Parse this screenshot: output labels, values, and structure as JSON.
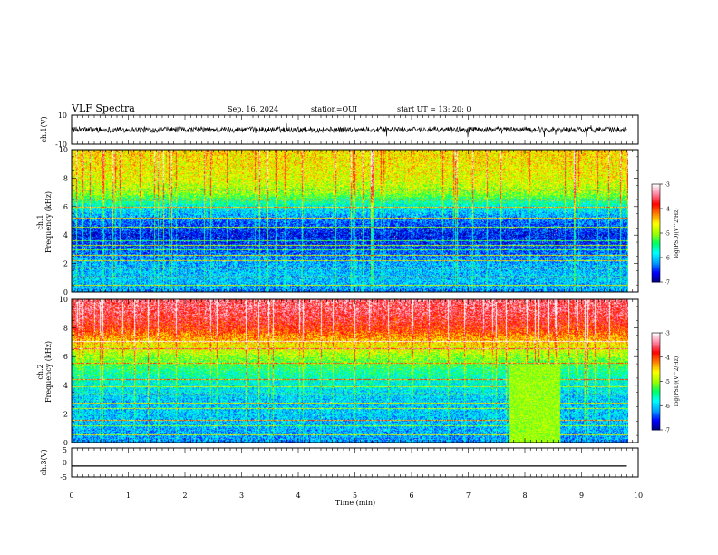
{
  "header": {
    "title": "VLF Spectra",
    "date": "Sep. 16, 2024",
    "station": "station=OUI",
    "start": "start  UT  =   13: 20: 0"
  },
  "colorbar": {
    "label": "log(PSD)(V^2/Hz)",
    "ticks": [
      "-3",
      "-4",
      "-5",
      "-6",
      "-7"
    ],
    "range": [
      -7,
      -3
    ],
    "colors": [
      "#000080",
      "#0000ff",
      "#00a0ff",
      "#00ffff",
      "#00ff60",
      "#a0ff00",
      "#ffff00",
      "#ff8000",
      "#ff0000",
      "#ff80a0",
      "#ffffff"
    ]
  },
  "chart_data": [
    {
      "type": "line",
      "panel": "ch1-waveform",
      "ylabel": "ch.1(V)",
      "ylim": [
        -10,
        10
      ],
      "yticks": [
        "10",
        "-10"
      ],
      "xlim": [
        0,
        10
      ],
      "description_values": {
        "baseline": 0,
        "typical_amplitude": 2
      }
    },
    {
      "type": "heatmap",
      "panel": "ch1-spectrogram",
      "ylabel": "ch.1\nFrequency (kHz)",
      "ylabel_top": "ch.1",
      "ylabel_bottom": "Frequency (kHz)",
      "yticks": [
        "0",
        "2",
        "4",
        "6",
        "8",
        "10"
      ],
      "ylim": [
        0,
        10
      ],
      "xlim": [
        0,
        9.8
      ],
      "freq_profile": [
        {
          "f": 0.0,
          "v": -6.2
        },
        {
          "f": 1.0,
          "v": -6.0
        },
        {
          "f": 2.0,
          "v": -6.1
        },
        {
          "f": 3.0,
          "v": -6.4
        },
        {
          "f": 4.0,
          "v": -6.6
        },
        {
          "f": 5.0,
          "v": -6.3
        },
        {
          "f": 6.0,
          "v": -5.8
        },
        {
          "f": 7.0,
          "v": -5.0
        },
        {
          "f": 8.0,
          "v": -4.7
        },
        {
          "f": 9.0,
          "v": -4.6
        },
        {
          "f": 10.0,
          "v": -4.5
        }
      ]
    },
    {
      "type": "heatmap",
      "panel": "ch2-spectrogram",
      "ylabel_top": "ch.2",
      "ylabel_bottom": "Frequency (kHz)",
      "yticks": [
        "0",
        "2",
        "4",
        "6",
        "8",
        "10"
      ],
      "ylim": [
        0,
        10
      ],
      "xlim": [
        0,
        9.8
      ],
      "freq_profile": [
        {
          "f": 0.0,
          "v": -6.2
        },
        {
          "f": 1.0,
          "v": -6.1
        },
        {
          "f": 2.0,
          "v": -6.0
        },
        {
          "f": 3.0,
          "v": -6.0
        },
        {
          "f": 4.0,
          "v": -5.8
        },
        {
          "f": 5.0,
          "v": -5.5
        },
        {
          "f": 6.0,
          "v": -5.0
        },
        {
          "f": 7.0,
          "v": -4.5
        },
        {
          "f": 8.0,
          "v": -3.9
        },
        {
          "f": 9.0,
          "v": -3.6
        },
        {
          "f": 10.0,
          "v": -3.5
        }
      ],
      "bright_block": {
        "t0": 7.7,
        "t1": 8.6,
        "f0": 0,
        "f1": 5.5,
        "v": -5.0
      }
    },
    {
      "type": "line",
      "panel": "ch3-waveform",
      "ylabel": "ch.3(V)",
      "ylim": [
        -5,
        5
      ],
      "yticks": [
        "5",
        "0",
        "-5"
      ],
      "xlim": [
        0,
        10
      ],
      "x": [
        0,
        9.8
      ],
      "y": [
        -1.2,
        -1.2
      ]
    }
  ],
  "xaxis": {
    "label": "Time (min)",
    "ticks": [
      "0",
      "1",
      "2",
      "3",
      "4",
      "5",
      "6",
      "7",
      "8",
      "9",
      "10"
    ],
    "xlim": [
      0,
      10
    ]
  }
}
